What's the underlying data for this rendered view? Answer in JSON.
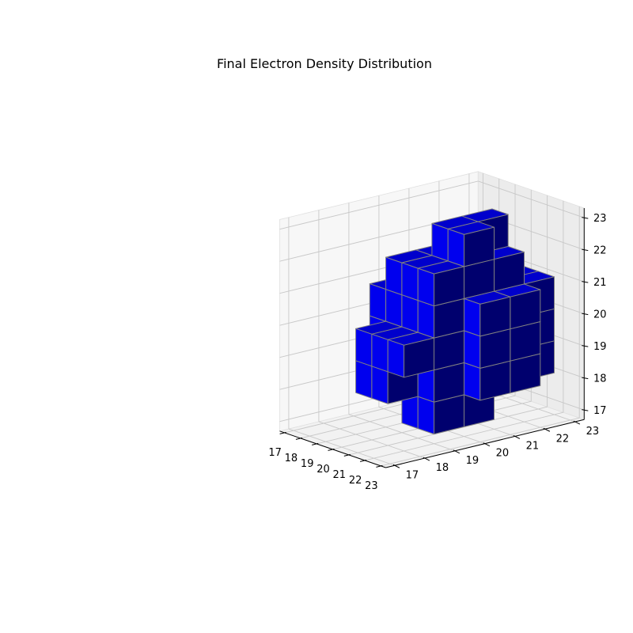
{
  "chart_data": {
    "type": "voxel",
    "title": "Final Electron Density Distribution",
    "xlabel": "",
    "ylabel": "",
    "zlabel": "",
    "xlim": [
      17,
      23
    ],
    "ylim": [
      17,
      23
    ],
    "zlim": [
      17,
      23
    ],
    "xticks": [
      "17",
      "18",
      "19",
      "20",
      "21",
      "22",
      "23"
    ],
    "yticks": [
      "17",
      "18",
      "19",
      "20",
      "21",
      "22",
      "23"
    ],
    "zticks": [
      "17",
      "18",
      "19",
      "20",
      "21",
      "22",
      "23"
    ],
    "grid": true,
    "face_color": "#0000ff",
    "edge_color": "#808080",
    "filled_voxels": [
      [
        18,
        19,
        19
      ],
      [
        18,
        19,
        20
      ],
      [
        18,
        20,
        19
      ],
      [
        18,
        20,
        20
      ],
      [
        19,
        18,
        18
      ],
      [
        19,
        18,
        19
      ],
      [
        19,
        19,
        18
      ],
      [
        19,
        19,
        19
      ],
      [
        19,
        19,
        20
      ],
      [
        19,
        19,
        21
      ],
      [
        19,
        20,
        18
      ],
      [
        19,
        20,
        19
      ],
      [
        19,
        20,
        20
      ],
      [
        19,
        20,
        21
      ],
      [
        19,
        21,
        18
      ],
      [
        19,
        21,
        19
      ],
      [
        19,
        21,
        20
      ],
      [
        19,
        21,
        21
      ],
      [
        20,
        18,
        18
      ],
      [
        20,
        18,
        19
      ],
      [
        20,
        19,
        17
      ],
      [
        20,
        19,
        18
      ],
      [
        20,
        19,
        19
      ],
      [
        20,
        19,
        20
      ],
      [
        20,
        19,
        21
      ],
      [
        20,
        20,
        17
      ],
      [
        20,
        20,
        18
      ],
      [
        20,
        20,
        19
      ],
      [
        20,
        20,
        20
      ],
      [
        20,
        20,
        21
      ],
      [
        20,
        20,
        22
      ],
      [
        20,
        21,
        18
      ],
      [
        20,
        21,
        19
      ],
      [
        20,
        21,
        20
      ],
      [
        20,
        21,
        21
      ],
      [
        20,
        21,
        22
      ],
      [
        20,
        22,
        19
      ],
      [
        20,
        22,
        20
      ],
      [
        21,
        18,
        19
      ],
      [
        21,
        19,
        17
      ],
      [
        21,
        19,
        18
      ],
      [
        21,
        19,
        19
      ],
      [
        21,
        19,
        20
      ],
      [
        21,
        19,
        21
      ],
      [
        21,
        20,
        17
      ],
      [
        21,
        20,
        18
      ],
      [
        21,
        20,
        19
      ],
      [
        21,
        20,
        20
      ],
      [
        21,
        20,
        21
      ],
      [
        21,
        20,
        22
      ],
      [
        21,
        21,
        18
      ],
      [
        21,
        21,
        19
      ],
      [
        21,
        21,
        20
      ],
      [
        21,
        21,
        21
      ],
      [
        21,
        22,
        18
      ],
      [
        21,
        22,
        19
      ],
      [
        21,
        22,
        20
      ],
      [
        22,
        20,
        18
      ],
      [
        22,
        20,
        19
      ],
      [
        22,
        20,
        20
      ],
      [
        22,
        21,
        18
      ],
      [
        22,
        21,
        19
      ],
      [
        22,
        21,
        20
      ]
    ]
  }
}
